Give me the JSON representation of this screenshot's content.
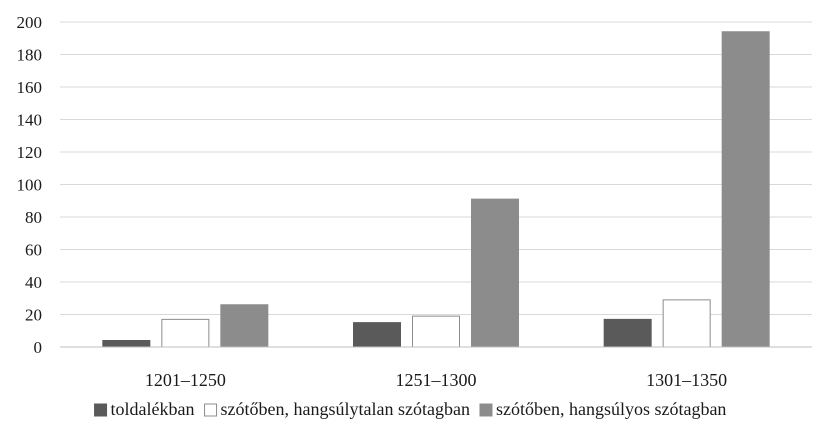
{
  "chart_data": {
    "type": "bar",
    "title": "",
    "xlabel": "",
    "ylabel": "",
    "ylim": [
      0,
      200
    ],
    "yticks": [
      0,
      20,
      40,
      60,
      80,
      100,
      120,
      140,
      160,
      180,
      200
    ],
    "grid": true,
    "legend_position": "bottom",
    "categories": [
      "1201–1250",
      "1251–1300",
      "1301–1350"
    ],
    "series": [
      {
        "name": "toldalékban",
        "values": [
          4,
          15,
          17
        ],
        "color": "#5a5a5a",
        "stroke": "#5a5a5a"
      },
      {
        "name": "szótőben, hangsúlytalan szótagban",
        "values": [
          17,
          19,
          29
        ],
        "color": "#ffffff",
        "stroke": "#8c8c8c"
      },
      {
        "name": "szótőben, hangsúlyos szótagban",
        "values": [
          26,
          91,
          194
        ],
        "color": "#8c8c8c",
        "stroke": "#8c8c8c"
      }
    ]
  }
}
